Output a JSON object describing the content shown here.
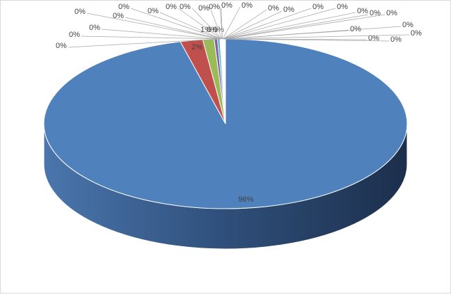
{
  "chart_data": {
    "type": "pie3d",
    "values": [
      96,
      2,
      1,
      0.3,
      0.2,
      0.02,
      0.02,
      0.02,
      0.02,
      0.02,
      0.02,
      0.02,
      0.02,
      0.02,
      0.02,
      0.02,
      0.02,
      0.02,
      0.02,
      0.02,
      0.02,
      0.02,
      0.02,
      0.02,
      0.02,
      0.02,
      0.02,
      0.02,
      0.02,
      0.02
    ],
    "value_labels": [
      "96%",
      "2%",
      "1%",
      "0%",
      "0%",
      "0%",
      "0%",
      "0%",
      "0%",
      "0%",
      "0%",
      "0%",
      "0%",
      "0%",
      "0%",
      "0%",
      "0%",
      "0%",
      "0%",
      "0%",
      "0%",
      "0%",
      "0%",
      "0%",
      "0%",
      "0%",
      "0%",
      "0%",
      "0%",
      "0%"
    ],
    "colors": [
      "#4f81bd",
      "#c0504d",
      "#9bbb59",
      "#8064a2",
      "#4bacc6",
      "#f79646",
      "#2c4d75",
      "#772c2a",
      "#5f7530",
      "#4d3b62",
      "#276a7c",
      "#b65708",
      "#729aca",
      "#cd7371",
      "#afc97a",
      "#9983b5",
      "#6fbdd1",
      "#f9ab6b",
      "#3a679c",
      "#9f3b38",
      "#7f9c40",
      "#664f83",
      "#358ea6",
      "#f3750b",
      "#95b3d7",
      "#d99694",
      "#c3d69b",
      "#b3a2c7",
      "#93cddd",
      "#fac090"
    ]
  }
}
